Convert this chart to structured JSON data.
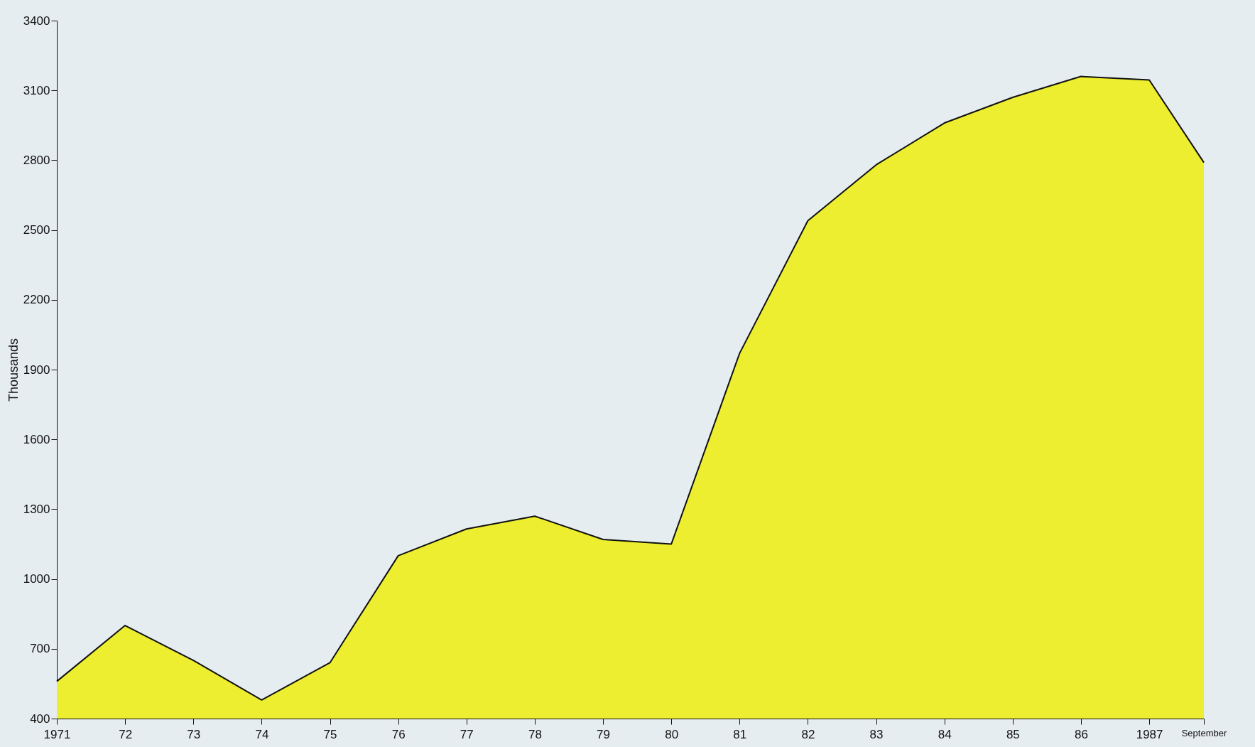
{
  "chart_data": {
    "type": "area",
    "ylabel": "Thousands",
    "x": [
      1971,
      1972,
      1973,
      1974,
      1975,
      1976,
      1977,
      1978,
      1979,
      1980,
      1981,
      1982,
      1983,
      1984,
      1985,
      1986,
      1987,
      1987.8
    ],
    "series": [
      {
        "color": "#eeee30",
        "values": [
          560,
          800,
          650,
          480,
          640,
          1100,
          1215,
          1270,
          1170,
          1150,
          1970,
          2540,
          2780,
          2960,
          3070,
          3160,
          3145,
          2790
        ]
      }
    ],
    "xlim": [
      1971,
      1987.8
    ],
    "xticks": [
      {
        "value": 1971,
        "label": "1971"
      },
      {
        "value": 1972,
        "label": "72"
      },
      {
        "value": 1973,
        "label": "73"
      },
      {
        "value": 1974,
        "label": "74"
      },
      {
        "value": 1975,
        "label": "75"
      },
      {
        "value": 1976,
        "label": "76"
      },
      {
        "value": 1977,
        "label": "77"
      },
      {
        "value": 1978,
        "label": "78"
      },
      {
        "value": 1979,
        "label": "79"
      },
      {
        "value": 1980,
        "label": "80"
      },
      {
        "value": 1981,
        "label": "81"
      },
      {
        "value": 1982,
        "label": "82"
      },
      {
        "value": 1983,
        "label": "83"
      },
      {
        "value": 1984,
        "label": "84"
      },
      {
        "value": 1985,
        "label": "85"
      },
      {
        "value": 1986,
        "label": "86"
      },
      {
        "value": 1987,
        "label": "1987"
      },
      {
        "value": 1987.8,
        "label": "September"
      }
    ],
    "ylim": [
      400,
      3400
    ],
    "yticks": [
      400,
      700,
      1000,
      1300,
      1600,
      1900,
      2200,
      2500,
      2800,
      3100,
      3400
    ],
    "grid": false
  }
}
